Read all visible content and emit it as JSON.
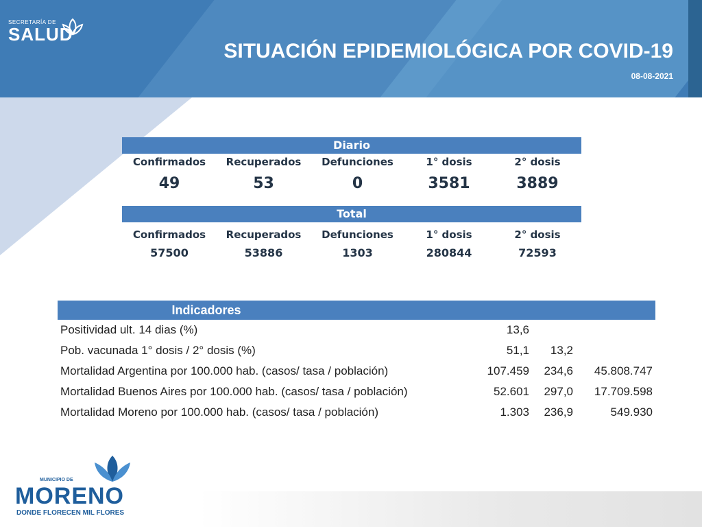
{
  "header": {
    "logo_small": "SECRETARÍA DE",
    "logo_big": "SALUD",
    "title": "SITUACIÓN EPIDEMIOLÓGICA POR COVID-19",
    "date": "08-08-2021"
  },
  "colors": {
    "brand_blue": "#3f7cb6",
    "bar_blue": "#4a80be",
    "text_dark": "#243446"
  },
  "diario": {
    "heading": "Diario",
    "columns": [
      "Confirmados",
      "Recuperados",
      "Defunciones",
      "1° dosis",
      "2° dosis"
    ],
    "values": [
      "49",
      "53",
      "0",
      "3581",
      "3889"
    ]
  },
  "total": {
    "heading": "Total",
    "columns": [
      "Confirmados",
      "Recuperados",
      "Defunciones",
      "1° dosis",
      "2° dosis"
    ],
    "values": [
      "57500",
      "53886",
      "1303",
      "280844",
      "72593"
    ]
  },
  "indicadores": {
    "heading": "Indicadores",
    "rows": [
      {
        "name": "Positividad ult. 14 dias (%)",
        "v1": "13,6",
        "v2": "",
        "v3": ""
      },
      {
        "name": "Pob. vacunada 1° dosis / 2° dosis (%)",
        "v1": "51,1",
        "v2": "13,2",
        "v3": ""
      },
      {
        "name": "Mortalidad Argentina por 100.000 hab. (casos/ tasa / población)",
        "v1": "107.459",
        "v2": "234,6",
        "v3": "45.808.747"
      },
      {
        "name": "Mortalidad Buenos Aires por 100.000 hab. (casos/ tasa / población)",
        "v1": "52.601",
        "v2": "297,0",
        "v3": "17.709.598"
      },
      {
        "name": "Mortalidad Moreno por 100.000 hab. (casos/ tasa / población)",
        "v1": "1.303",
        "v2": "236,9",
        "v3": "549.930"
      }
    ]
  },
  "footer": {
    "logo_small": "MUNICIPIO DE",
    "logo_big": "MORENO",
    "tagline": "DONDE FLORECEN MIL FLORES"
  }
}
